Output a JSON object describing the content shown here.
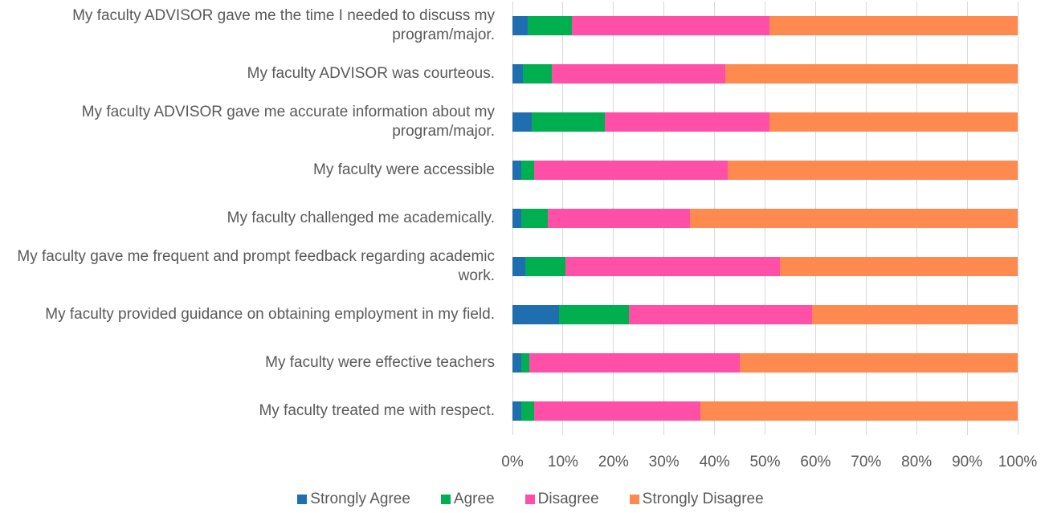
{
  "chart_data": {
    "type": "stacked_bar_horizontal",
    "categories": [
      "My faculty ADVISOR gave me the time I needed to discuss my program/major.",
      "My faculty ADVISOR was courteous.",
      "My faculty ADVISOR gave me accurate information about my program/major.",
      "My faculty were accessible",
      "My faculty challenged me academically.",
      "My faculty gave me frequent and prompt feedback regarding academic work.",
      "My faculty provided guidance on obtaining employment in my field.",
      "My faculty were effective teachers",
      "My faculty treated me with respect."
    ],
    "series": [
      {
        "name": "Strongly Agree",
        "color": "#1f6fb0",
        "values": [
          3.0,
          2.0,
          3.8,
          1.7,
          1.7,
          2.5,
          9.2,
          1.7,
          1.7
        ]
      },
      {
        "name": "Agree",
        "color": "#00b050",
        "values": [
          8.8,
          5.8,
          14.5,
          2.6,
          5.3,
          8.0,
          13.9,
          1.6,
          2.6
        ]
      },
      {
        "name": "Disagree",
        "color": "#ff4fa7",
        "values": [
          39.1,
          34.3,
          32.6,
          38.3,
          28.1,
          42.4,
          36.2,
          41.7,
          32.9
        ]
      },
      {
        "name": "Strongly Disagree",
        "color": "#ff8a4f",
        "values": [
          49.1,
          57.9,
          49.1,
          57.4,
          64.9,
          47.1,
          40.7,
          55.0,
          62.8
        ]
      }
    ],
    "xlim": [
      0,
      100
    ],
    "xticks": [
      {
        "value": 0,
        "label": "0%"
      },
      {
        "value": 10,
        "label": "10%"
      },
      {
        "value": 20,
        "label": "20%"
      },
      {
        "value": 30,
        "label": "30%"
      },
      {
        "value": 40,
        "label": "40%"
      },
      {
        "value": 50,
        "label": "50%"
      },
      {
        "value": 60,
        "label": "60%"
      },
      {
        "value": 70,
        "label": "70%"
      },
      {
        "value": 80,
        "label": "80%"
      },
      {
        "value": 90,
        "label": "90%"
      },
      {
        "value": 100,
        "label": "100%"
      }
    ],
    "grid": true,
    "legend": "bottom"
  }
}
